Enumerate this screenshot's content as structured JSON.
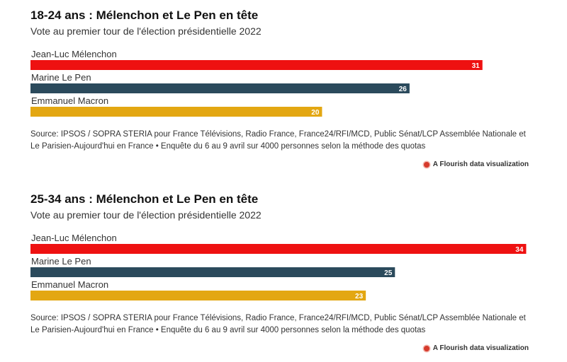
{
  "chart_data": [
    {
      "type": "bar",
      "orientation": "horizontal",
      "title": "18-24 ans : Mélenchon et Le Pen en tête",
      "subtitle": "Vote au premier tour de l'élection présidentielle 2022",
      "categories": [
        "Jean-Luc Mélenchon",
        "Marine Le Pen",
        "Emmanuel Macron"
      ],
      "values": [
        31,
        26,
        20
      ],
      "colors": [
        "#ee1111",
        "#2b4a5c",
        "#e3a712"
      ],
      "xlim": [
        0,
        35
      ],
      "grid": false,
      "legend": "none",
      "source": "Source: IPSOS / SOPRA STERIA pour France Télévisions, Radio France, France24/RFI/MCD, Public Sénat/LCP Assemblée Nationale et Le Parisien-Aujourd'hui en France • Enquête du 6 au 9 avril sur 4000 personnes selon la méthode des quotas",
      "credit": "A Flourish data visualization"
    },
    {
      "type": "bar",
      "orientation": "horizontal",
      "title": "25-34 ans : Mélenchon et Le Pen en tête",
      "subtitle": "Vote au premier tour de l'élection présidentielle 2022",
      "categories": [
        "Jean-Luc Mélenchon",
        "Marine Le Pen",
        "Emmanuel Macron"
      ],
      "values": [
        34,
        25,
        23
      ],
      "colors": [
        "#ee1111",
        "#2b4a5c",
        "#e3a712"
      ],
      "xlim": [
        0,
        35
      ],
      "grid": false,
      "legend": "none",
      "source": "Source: IPSOS / SOPRA STERIA pour France Télévisions, Radio France, France24/RFI/MCD, Public Sénat/LCP Assemblée Nationale et Le Parisien-Aujourd'hui en France • Enquête du 6 au 9 avril sur 4000 personnes selon la méthode des quotas",
      "credit": "A Flourish data visualization"
    }
  ]
}
